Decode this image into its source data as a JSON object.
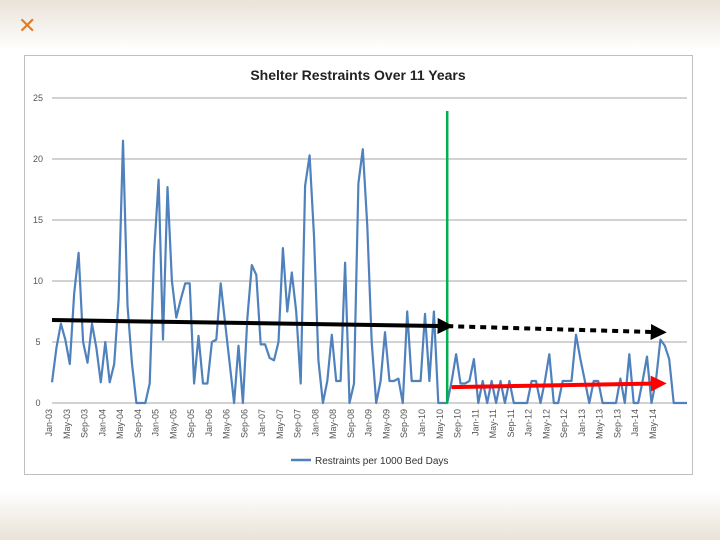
{
  "slide": {
    "accent_color": "#e07b2c",
    "mark_icon": "x-mark-icon"
  },
  "chart_data": {
    "type": "line",
    "title": "Shelter Restraints Over 11 Years",
    "xlabel": "",
    "ylabel": "",
    "ylim": [
      0,
      25
    ],
    "yticks": [
      0,
      5,
      10,
      15,
      20,
      25
    ],
    "grid": true,
    "legend_position": "bottom",
    "x_tick_labels": [
      "Jan-03",
      "May-03",
      "Sep-03",
      "Jan-04",
      "May-04",
      "Sep-04",
      "Jan-05",
      "May-05",
      "Sep-05",
      "Jan-06",
      "May-06",
      "Sep-06",
      "Jan-07",
      "May-07",
      "Sep-07",
      "Jan-08",
      "May-08",
      "Sep-08",
      "Jan-09",
      "May-09",
      "Sep-09",
      "Jan-10",
      "May-10",
      "Sep-10",
      "Jan-11",
      "May-11",
      "Sep-11",
      "Jan-12",
      "May-12",
      "Sep-12",
      "Jan-13",
      "May-13",
      "Sep-13",
      "Jan-14",
      "May-14"
    ],
    "series": [
      {
        "name": "Restraints per 1000 Bed Days",
        "color": "#4f81bd",
        "values": [
          1.7,
          4.5,
          6.5,
          5.2,
          3.2,
          9.0,
          12.3,
          5.0,
          3.3,
          6.5,
          4.5,
          1.7,
          5.0,
          1.7,
          3.2,
          8.5,
          21.5,
          8.0,
          3.3,
          0,
          0,
          0,
          1.6,
          12.3,
          18.3,
          5.2,
          17.7,
          10.0,
          7.0,
          8.5,
          9.8,
          9.8,
          1.6,
          5.5,
          1.6,
          1.6,
          5.0,
          5.2,
          9.8,
          6.5,
          3.3,
          0,
          4.7,
          0,
          7.0,
          11.3,
          10.5,
          4.8,
          4.8,
          3.7,
          3.5,
          5.0,
          12.7,
          7.5,
          10.7,
          7.5,
          1.6,
          17.8,
          20.3,
          13.7,
          3.5,
          0,
          1.8,
          5.6,
          1.8,
          1.8,
          11.5,
          0,
          1.6,
          18.0,
          20.8,
          14.5,
          5.0,
          0,
          1.8,
          5.8,
          1.8,
          1.8,
          2.0,
          0,
          7.5,
          1.8,
          1.8,
          1.8,
          7.3,
          1.8,
          7.5,
          0,
          0,
          0,
          1.8,
          4.0,
          1.6,
          1.6,
          1.8,
          3.6,
          0,
          1.8,
          0,
          1.8,
          0,
          1.8,
          0,
          1.8,
          0,
          0,
          0,
          0,
          1.8,
          1.8,
          0,
          1.8,
          4.0,
          0,
          0,
          1.8,
          1.8,
          1.8,
          5.6,
          3.6,
          1.8,
          0,
          1.8,
          1.8,
          0,
          0,
          0,
          0,
          2.0,
          0,
          4.0,
          0,
          0,
          1.8,
          3.8,
          0,
          1.8,
          5.2,
          4.7,
          3.6,
          0,
          0,
          0,
          0
        ]
      }
    ],
    "annotations": [
      {
        "kind": "vertical_line",
        "color": "#00b050",
        "x_month": 89
      },
      {
        "kind": "trend_arrow",
        "color": "#000000",
        "style": "solid",
        "from": [
          0,
          6.8
        ],
        "to": [
          89,
          6.3
        ]
      },
      {
        "kind": "trend_arrow",
        "color": "#000000",
        "style": "dashed",
        "from": [
          89,
          6.3
        ],
        "to": [
          137,
          5.8
        ]
      },
      {
        "kind": "trend_arrow",
        "color": "#ff0000",
        "style": "solid",
        "from": [
          90,
          1.3
        ],
        "to": [
          137,
          1.6
        ]
      }
    ]
  }
}
